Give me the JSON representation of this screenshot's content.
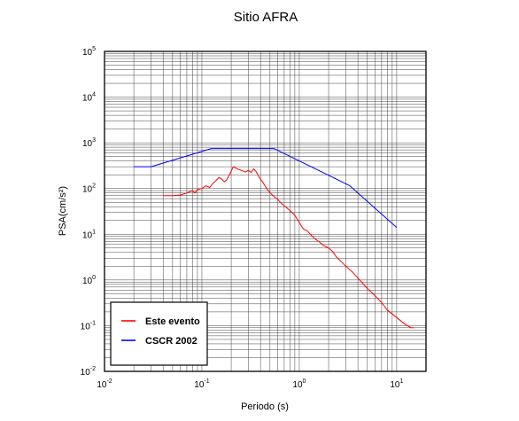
{
  "chart_data": {
    "type": "line",
    "title": "Sitio AFRA",
    "xlabel": "Periodo (s)",
    "ylabel": "PSA(cm/s²)",
    "xscale": "log",
    "yscale": "log",
    "xlim": [
      0.01,
      20
    ],
    "ylim": [
      0.01,
      100000
    ],
    "xticks": [
      {
        "value": 0.01,
        "base": "10",
        "exp": "-2"
      },
      {
        "value": 0.1,
        "base": "10",
        "exp": "-1"
      },
      {
        "value": 1,
        "base": "10",
        "exp": "0"
      },
      {
        "value": 10,
        "base": "10",
        "exp": "1"
      }
    ],
    "yticks": [
      {
        "value": 0.01,
        "base": "10",
        "exp": "-2"
      },
      {
        "value": 0.1,
        "base": "10",
        "exp": "-1"
      },
      {
        "value": 1,
        "base": "10",
        "exp": "0"
      },
      {
        "value": 10,
        "base": "10",
        "exp": "1"
      },
      {
        "value": 100,
        "base": "10",
        "exp": "2"
      },
      {
        "value": 1000,
        "base": "10",
        "exp": "3"
      },
      {
        "value": 10000,
        "base": "10",
        "exp": "4"
      },
      {
        "value": 100000,
        "base": "10",
        "exp": "5"
      }
    ],
    "grid": true,
    "legend_position": "bottom-left",
    "series": [
      {
        "name": "Este evento",
        "color": "#ff0000",
        "x": [
          0.04,
          0.05,
          0.06,
          0.07,
          0.08,
          0.085,
          0.09,
          0.1,
          0.11,
          0.12,
          0.13,
          0.14,
          0.15,
          0.16,
          0.17,
          0.18,
          0.19,
          0.2,
          0.21,
          0.22,
          0.23,
          0.24,
          0.26,
          0.28,
          0.3,
          0.32,
          0.34,
          0.36,
          0.38,
          0.4,
          0.42,
          0.45,
          0.48,
          0.52,
          0.56,
          0.6,
          0.65,
          0.7,
          0.8,
          0.9,
          1.0,
          1.1,
          1.2,
          1.3,
          1.4,
          1.5,
          1.6,
          1.8,
          2.0,
          2.2,
          2.4,
          2.7,
          3.0,
          3.5,
          4.0,
          5.0,
          6.0,
          7.0,
          8.0,
          10.0,
          12.0,
          14.0,
          15.0
        ],
        "y": [
          70,
          70,
          72,
          80,
          90,
          80,
          95,
          100,
          115,
          105,
          130,
          150,
          175,
          160,
          140,
          155,
          190,
          240,
          300,
          285,
          270,
          260,
          245,
          230,
          250,
          225,
          270,
          235,
          190,
          160,
          140,
          110,
          90,
          75,
          65,
          58,
          48,
          42,
          33,
          26,
          18,
          13,
          12,
          10,
          8.5,
          7.5,
          6.8,
          5.6,
          5.0,
          4.2,
          3.2,
          2.5,
          2.0,
          1.5,
          1.1,
          0.65,
          0.45,
          0.32,
          0.22,
          0.15,
          0.11,
          0.09,
          0.09
        ]
      },
      {
        "name": "CSCR 2002",
        "color": "#0000ff",
        "x": [
          0.02,
          0.03,
          0.125,
          0.55,
          3.3,
          10.0
        ],
        "y": [
          300,
          300,
          750,
          750,
          115,
          14
        ]
      }
    ]
  }
}
